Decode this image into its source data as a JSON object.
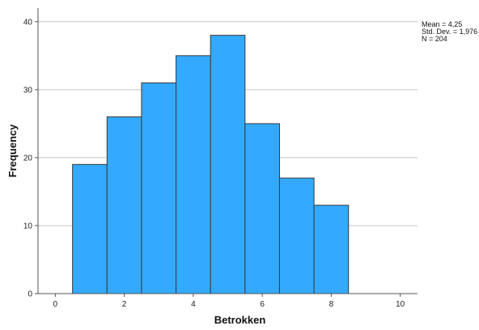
{
  "chart_data": {
    "type": "bar",
    "subtype": "histogram",
    "bins": [
      {
        "x0": 0.5,
        "x1": 1.5,
        "value": 19
      },
      {
        "x0": 1.5,
        "x1": 2.5,
        "value": 26
      },
      {
        "x0": 2.5,
        "x1": 3.5,
        "value": 31
      },
      {
        "x0": 3.5,
        "x1": 4.5,
        "value": 35
      },
      {
        "x0": 4.5,
        "x1": 5.5,
        "value": 38
      },
      {
        "x0": 5.5,
        "x1": 6.5,
        "value": 25
      },
      {
        "x0": 6.5,
        "x1": 7.5,
        "value": 17
      },
      {
        "x0": 7.5,
        "x1": 8.5,
        "value": 13
      }
    ],
    "xlabel": "Betrokken",
    "ylabel": "Frequency",
    "xlim": [
      -0.5,
      10.5
    ],
    "ylim": [
      0,
      42
    ],
    "xticks": [
      "0",
      "2",
      "4",
      "6",
      "8",
      "10"
    ],
    "yticks": [
      "0",
      "10",
      "20",
      "30",
      "40"
    ],
    "grid": "horizontal",
    "bar_color": "#33aaff",
    "bar_edge_color": "#3a3a3a",
    "stats": [
      "Mean = 4,25",
      "Std. Dev. = 1,976",
      "N = 204"
    ],
    "stats_placement": "top-right"
  }
}
